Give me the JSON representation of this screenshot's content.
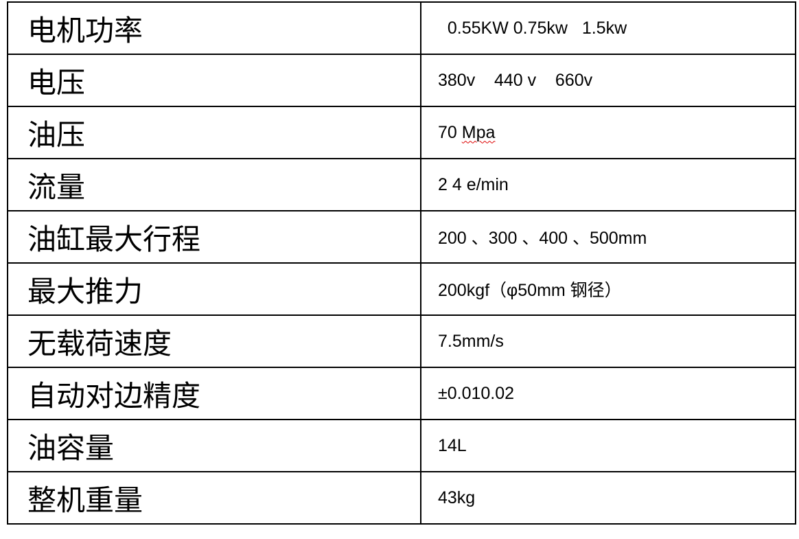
{
  "specs": [
    {
      "label": "电机功率",
      "value": "  0.55KW 0.75kw   1.5kw"
    },
    {
      "label": "电压",
      "value": "380v    440 v    660v"
    },
    {
      "label": "油压",
      "value": "70 ",
      "value_suffix": "Mpa"
    },
    {
      "label": "流量",
      "value": "2 4 e/min"
    },
    {
      "label": "油缸最大行程",
      "value": "200 、300 、400 、500mm"
    },
    {
      "label": "最大推力",
      "value": "200kgf（φ50mm 钢径）"
    },
    {
      "label": "无载荷速度",
      "value": "7.5mm/s"
    },
    {
      "label": "自动对边精度",
      "value": "±0.010.02"
    },
    {
      "label": "油容量",
      "value": "14L"
    },
    {
      "label": "整机重量",
      "value": "43kg"
    }
  ]
}
